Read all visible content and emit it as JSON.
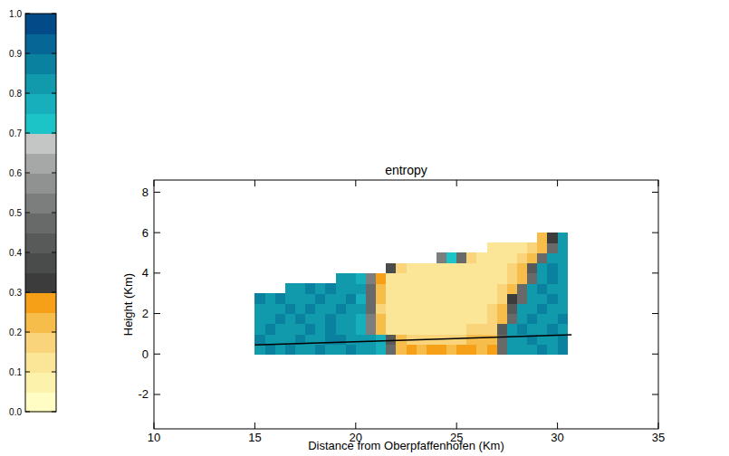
{
  "chart_data": {
    "type": "heatmap",
    "title": "entropy",
    "x_label": "Distance from Oberpfaffenhofen (Km)",
    "y_label": "Height (Km)",
    "xlim": [
      10,
      35
    ],
    "ylim": [
      -3.7,
      8.6
    ],
    "xticks": [
      10,
      15,
      20,
      25,
      30,
      35
    ],
    "yticks": [
      -2,
      0,
      2,
      4,
      6,
      8
    ],
    "x_bins": [
      15,
      15.5,
      16,
      16.5,
      17,
      17.5,
      18,
      18.5,
      19,
      19.5,
      20,
      20.5,
      21,
      21.5,
      22,
      22.5,
      23,
      23.5,
      24,
      24.5,
      25,
      25.5,
      26,
      26.5,
      27,
      27.5,
      28,
      28.5,
      29,
      29.5,
      30,
      30.5
    ],
    "y_bins": [
      0,
      0.5,
      1,
      1.5,
      2,
      2.5,
      3,
      3.5,
      4,
      4.5,
      5,
      5.5,
      6
    ],
    "z": [
      [
        0.82,
        0.85,
        0.8,
        0.86,
        0.83,
        0.81,
        0.87,
        0.84,
        0.8,
        0.85,
        0.83,
        0.82,
        0.78,
        0.45,
        0.24,
        0.26,
        0.23,
        0.27,
        0.25,
        0.24,
        0.26,
        0.25,
        0.23,
        0.27,
        0.45,
        0.8,
        0.84,
        0.82,
        0.86,
        0.83,
        0.85
      ],
      [
        0.85,
        0.81,
        0.84,
        0.8,
        0.86,
        0.83,
        0.82,
        0.85,
        0.87,
        0.81,
        0.84,
        0.8,
        0.76,
        0.4,
        0.2,
        0.18,
        0.16,
        0.15,
        0.17,
        0.16,
        0.18,
        0.2,
        0.22,
        0.24,
        0.45,
        0.84,
        0.81,
        0.85,
        0.83,
        0.8,
        0.86
      ],
      [
        0.83,
        0.86,
        0.8,
        0.84,
        0.82,
        0.85,
        0.81,
        0.86,
        0.83,
        0.8,
        0.78,
        0.5,
        0.22,
        0.14,
        0.12,
        0.13,
        0.11,
        0.12,
        0.14,
        0.13,
        0.12,
        0.15,
        0.16,
        0.18,
        0.4,
        0.8,
        0.85,
        0.82,
        0.84,
        0.87,
        0.83
      ],
      [
        0.81,
        0.84,
        0.86,
        0.82,
        0.85,
        0.8,
        0.83,
        0.87,
        0.81,
        0.84,
        0.79,
        0.5,
        0.2,
        0.13,
        0.11,
        0.12,
        0.1,
        0.11,
        0.12,
        0.1,
        0.11,
        0.13,
        0.14,
        0.16,
        0.2,
        0.45,
        0.82,
        0.86,
        0.83,
        0.8,
        0.85
      ],
      [
        0.84,
        0.8,
        0.83,
        0.86,
        0.81,
        0.85,
        0.82,
        0.8,
        0.86,
        0.83,
        0.8,
        0.48,
        0.19,
        0.12,
        0.1,
        0.11,
        0.12,
        0.1,
        0.11,
        0.12,
        0.1,
        0.12,
        0.13,
        0.15,
        0.22,
        0.42,
        0.83,
        0.8,
        0.86,
        0.82,
        0.84
      ],
      [
        0.86,
        0.82,
        0.85,
        0.8,
        0.84,
        0.81,
        0.86,
        0.83,
        0.8,
        0.85,
        0.79,
        0.48,
        0.2,
        0.12,
        0.11,
        0.1,
        0.12,
        0.11,
        0.1,
        0.12,
        0.11,
        0.12,
        0.13,
        0.14,
        0.18,
        0.3,
        0.45,
        0.84,
        0.81,
        0.86,
        0.83
      ],
      [
        null,
        null,
        null,
        0.83,
        0.8,
        0.85,
        0.82,
        0.86,
        0.81,
        0.84,
        0.8,
        0.46,
        0.2,
        0.12,
        0.1,
        0.11,
        0.12,
        0.1,
        0.11,
        0.12,
        0.1,
        0.11,
        0.12,
        0.13,
        0.15,
        0.2,
        0.45,
        0.82,
        0.85,
        0.8,
        0.84
      ],
      [
        null,
        null,
        null,
        null,
        null,
        null,
        null,
        null,
        0.84,
        0.81,
        0.78,
        0.5,
        0.25,
        0.13,
        0.11,
        0.12,
        0.1,
        0.11,
        0.12,
        0.11,
        0.1,
        0.12,
        0.11,
        0.12,
        0.13,
        0.15,
        0.2,
        0.45,
        0.83,
        0.86,
        0.81
      ],
      [
        null,
        null,
        null,
        null,
        null,
        null,
        null,
        null,
        null,
        null,
        null,
        null,
        null,
        0.38,
        0.15,
        0.12,
        0.11,
        0.12,
        0.13,
        0.12,
        0.11,
        0.12,
        0.11,
        0.12,
        0.14,
        0.16,
        0.22,
        0.42,
        0.82,
        0.85,
        0.8
      ],
      [
        null,
        null,
        null,
        null,
        null,
        null,
        null,
        null,
        null,
        null,
        null,
        null,
        null,
        null,
        null,
        null,
        null,
        null,
        0.5,
        0.72,
        0.45,
        0.15,
        0.12,
        0.13,
        0.12,
        0.14,
        0.16,
        0.2,
        0.45,
        0.83,
        0.8
      ],
      [
        null,
        null,
        null,
        null,
        null,
        null,
        null,
        null,
        null,
        null,
        null,
        null,
        null,
        null,
        null,
        null,
        null,
        null,
        null,
        null,
        null,
        null,
        null,
        0.14,
        0.13,
        0.12,
        0.14,
        0.17,
        0.22,
        0.45,
        0.82
      ],
      [
        null,
        null,
        null,
        null,
        null,
        null,
        null,
        null,
        null,
        null,
        null,
        null,
        null,
        null,
        null,
        null,
        null,
        null,
        null,
        null,
        null,
        null,
        null,
        null,
        null,
        null,
        null,
        null,
        0.2,
        0.32,
        0.8
      ]
    ],
    "colorbar": {
      "range": [
        0,
        1
      ],
      "ticks": [
        {
          "value": 0,
          "label": "0.0"
        },
        {
          "value": 0.1,
          "label": "0.1"
        },
        {
          "value": 0.2,
          "label": "0.2"
        },
        {
          "value": 0.3,
          "label": "0.3"
        },
        {
          "value": 0.4,
          "label": "0.4"
        },
        {
          "value": 0.5,
          "label": "0.5"
        },
        {
          "value": 0.6,
          "label": "0.6"
        },
        {
          "value": 0.7,
          "label": "0.7"
        },
        {
          "value": 0.8,
          "label": "0.8"
        },
        {
          "value": 0.9,
          "label": "0.9"
        },
        {
          "value": 1,
          "label": "1.0"
        }
      ],
      "colors": [
        "#fffcc4",
        "#fdf2ac",
        "#fbe596",
        "#f9d47a",
        "#f7bd4a",
        "#f5a016",
        "#3c3c3c",
        "#4a4c4c",
        "#585a5a",
        "#686a6a",
        "#7c7e7e",
        "#909292",
        "#a6a8a8",
        "#c4c6c6",
        "#1cc4c8",
        "#16afbb",
        "#1199ac",
        "#0a829f",
        "#066796",
        "#034a88"
      ]
    },
    "series": [
      {
        "type": "line",
        "color": "#000000",
        "x": [
          15,
          30.7
        ],
        "values": [
          0.45,
          0.95
        ]
      }
    ]
  }
}
